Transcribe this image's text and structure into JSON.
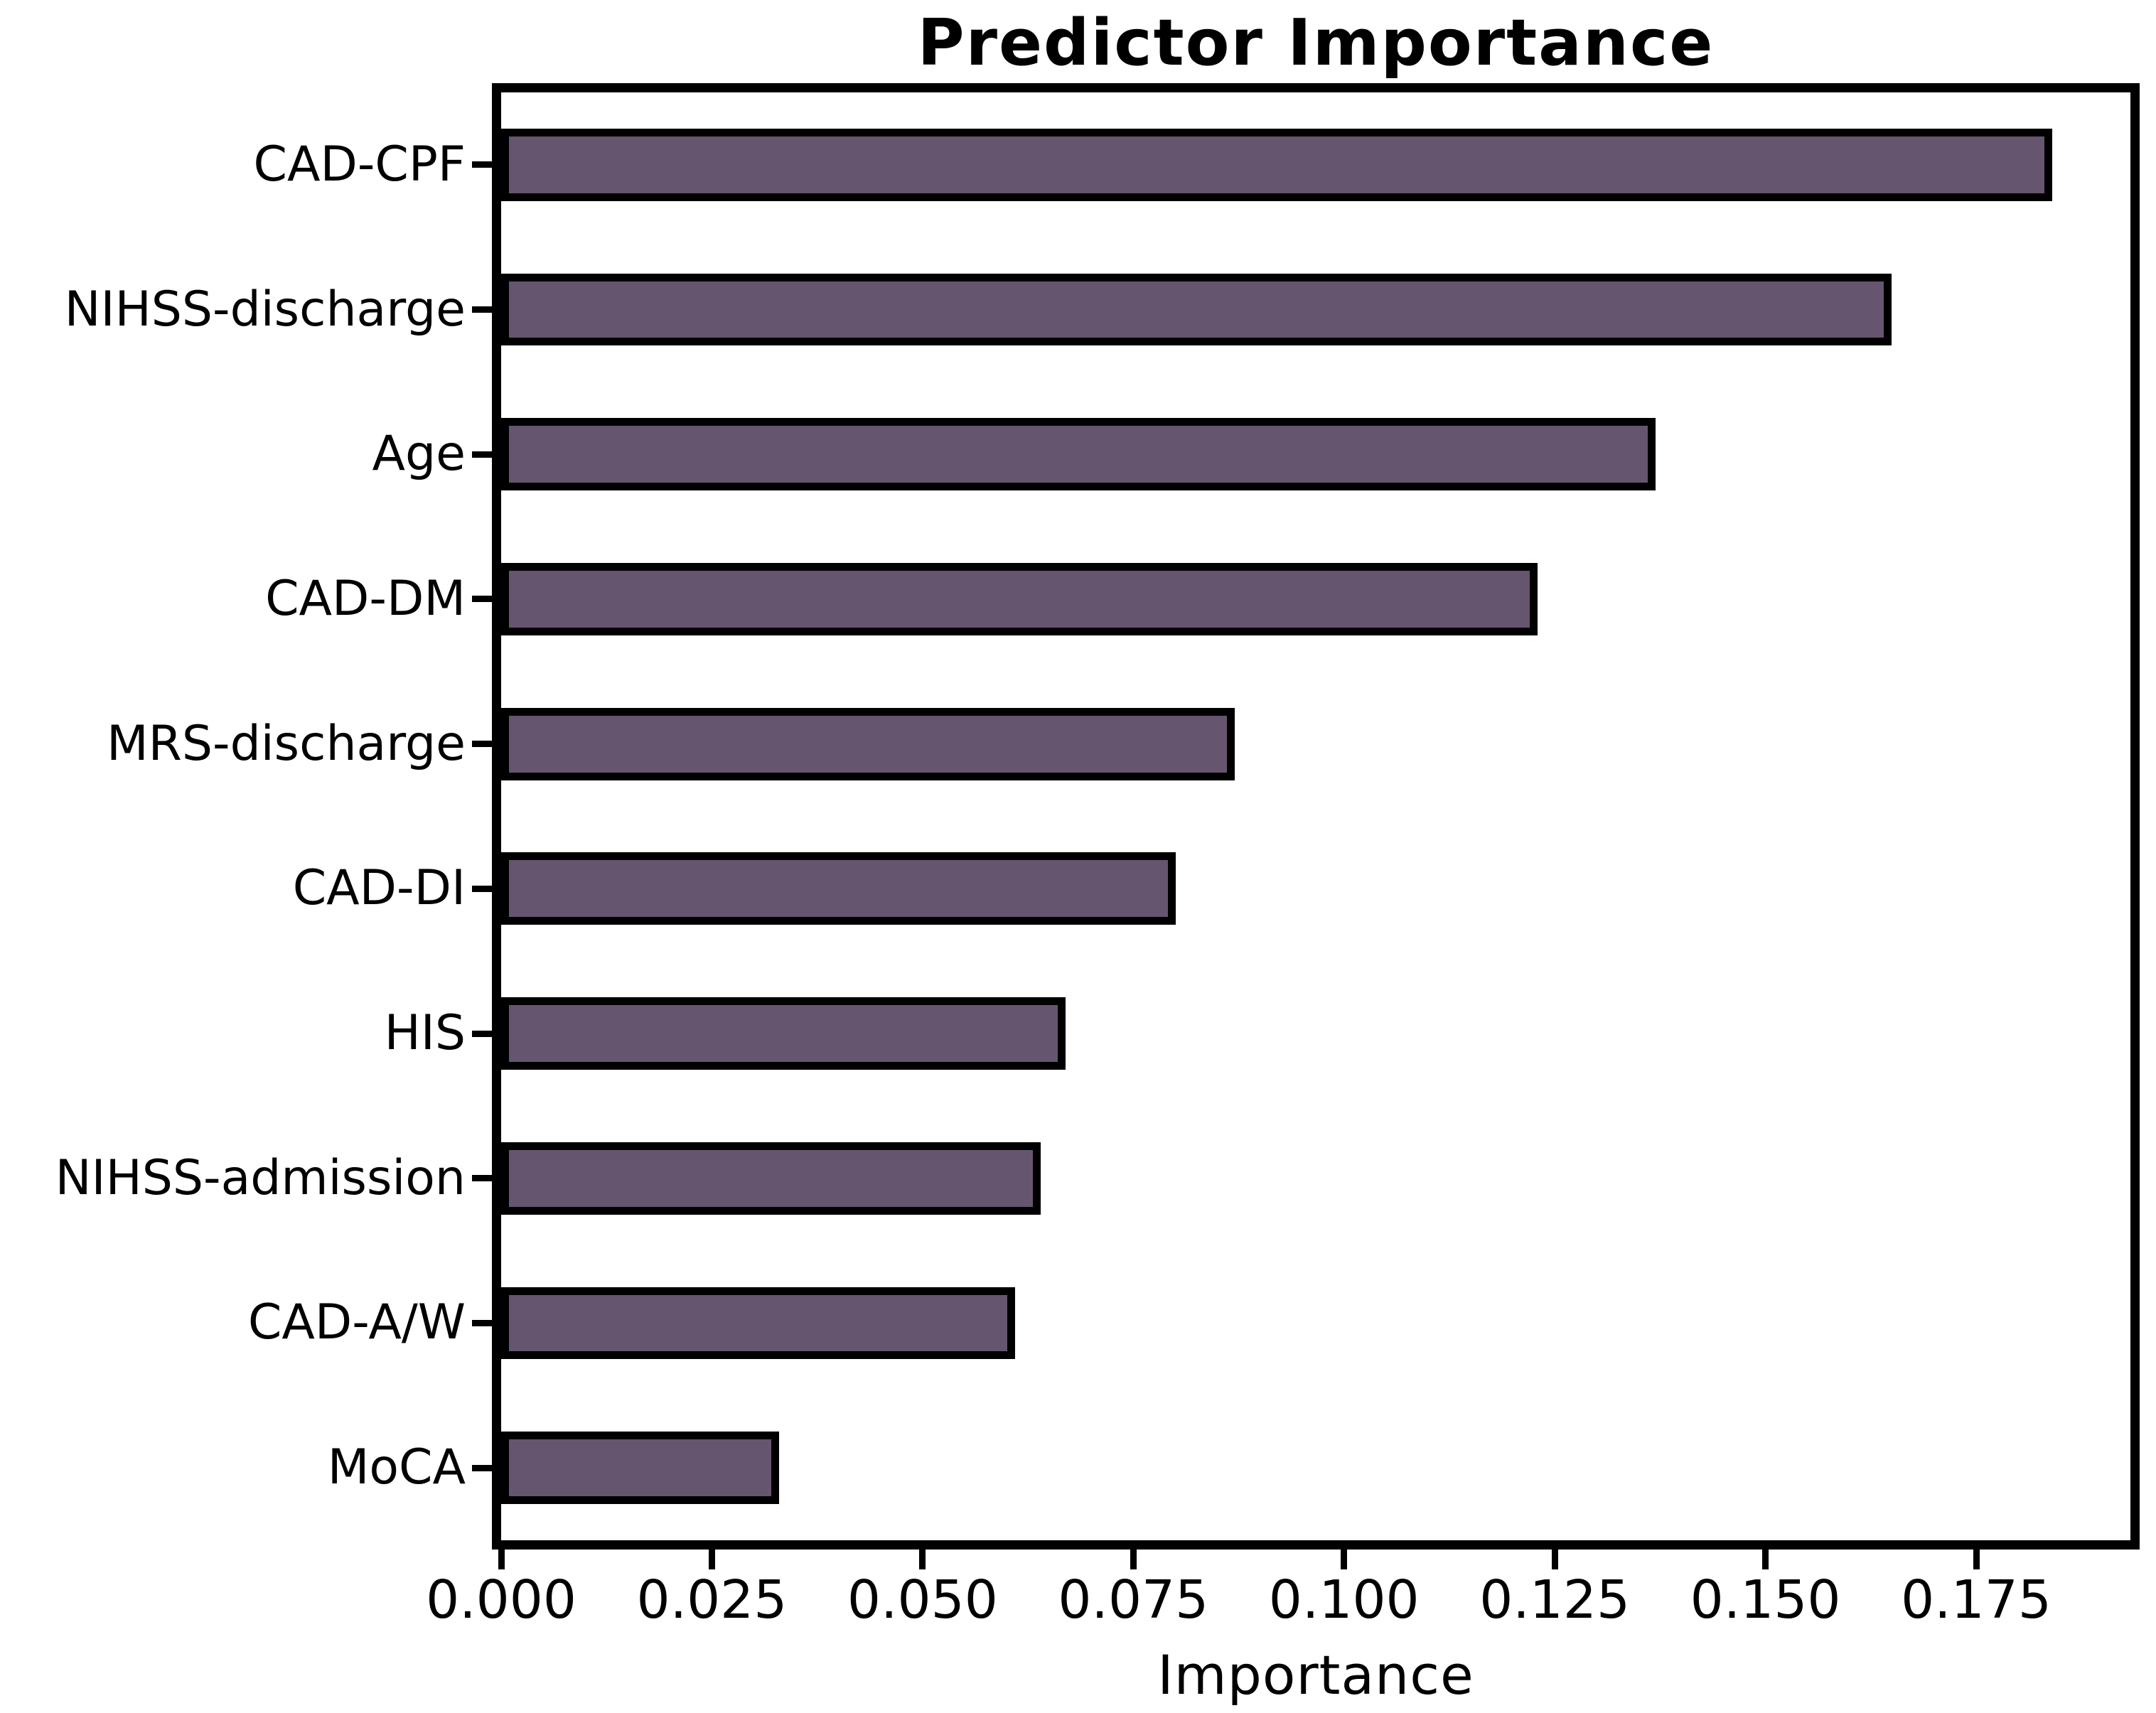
{
  "chart_data": {
    "type": "bar",
    "orientation": "horizontal",
    "title": "Predictor Importance",
    "xlabel": "Importance",
    "ylabel": "",
    "categories": [
      "CAD-CPF",
      "NIHSS-discharge",
      "Age",
      "CAD-DM",
      "MRS-discharge",
      "CAD-DI",
      "HIS",
      "NIHSS-admission",
      "CAD-A/W",
      "MoCA"
    ],
    "values": [
      0.184,
      0.165,
      0.137,
      0.123,
      0.087,
      0.08,
      0.067,
      0.064,
      0.061,
      0.033
    ],
    "xlim": [
      0,
      0.1933
    ],
    "xtick_labels": [
      "0.000",
      "0.025",
      "0.050",
      "0.075",
      "0.100",
      "0.125",
      "0.150",
      "0.175"
    ],
    "xtick_values": [
      0.0,
      0.025,
      0.05,
      0.075,
      0.1,
      0.125,
      0.15,
      0.175
    ],
    "bar_color": "#65556E",
    "bar_edge_color": "#000000",
    "bar_relative_height": 0.5,
    "grid": false,
    "legend_position": "none"
  }
}
